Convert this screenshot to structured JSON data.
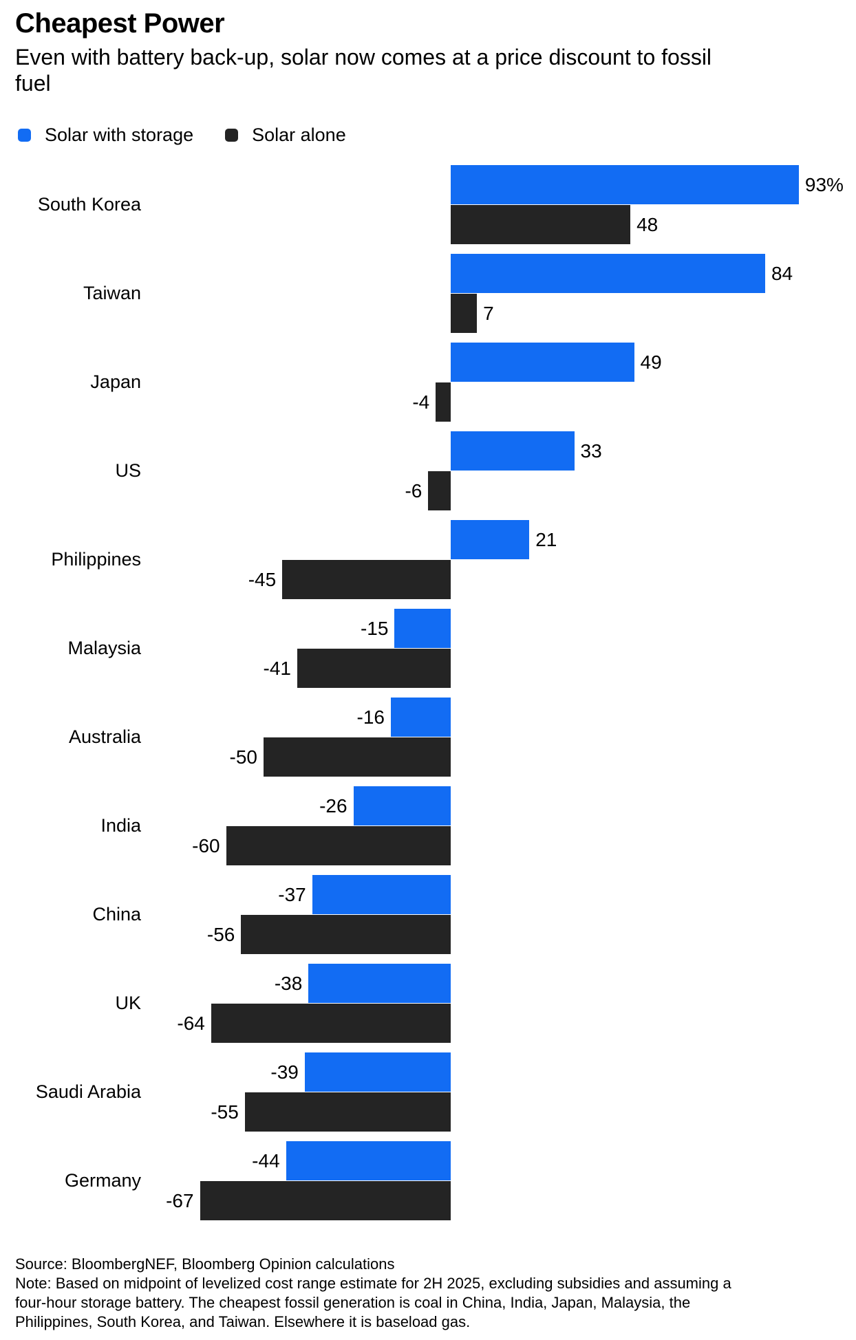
{
  "header": {
    "title": "Cheapest Power",
    "subtitle_line1": "Even with battery back-up, solar now comes at a price discount to fossil",
    "subtitle_line2": "fuel"
  },
  "theme": {
    "background": "#ffffff",
    "text_color": "#000000",
    "accent_blue": "#126cf3",
    "accent_dark": "#242424"
  },
  "chart_data": {
    "type": "bar",
    "orientation": "horizontal",
    "title": "Cheapest Power",
    "subtitle": "Even with battery back-up, solar now comes at a price discount to fossil fuel",
    "unit": "%",
    "xlim": [
      -67,
      93
    ],
    "grid": false,
    "legend_position": "top-left",
    "categories": [
      "South Korea",
      "Taiwan",
      "Japan",
      "US",
      "Philippines",
      "Malaysia",
      "Australia",
      "India",
      "China",
      "UK",
      "Saudi Arabia",
      "Germany"
    ],
    "series": [
      {
        "name": "Solar with storage",
        "color": "#126cf3",
        "values": [
          93,
          84,
          49,
          33,
          21,
          -15,
          -16,
          -26,
          -37,
          -38,
          -39,
          -44
        ],
        "labels": [
          "93%",
          "84",
          "49",
          "33",
          "21",
          "-15",
          "-16",
          "-26",
          "-37",
          "-38",
          "-39",
          "-44"
        ]
      },
      {
        "name": "Solar alone",
        "color": "#242424",
        "values": [
          48,
          7,
          -4,
          -6,
          -45,
          -41,
          -50,
          -60,
          -56,
          -64,
          -55,
          -67
        ],
        "labels": [
          "48",
          "7",
          "-4",
          "-6",
          "-45",
          "-41",
          "-50",
          "-60",
          "-56",
          "-64",
          "-55",
          "-67"
        ]
      }
    ]
  },
  "footer": {
    "source": "Source: BloombergNEF, Bloomberg Opinion calculations",
    "note_lines": [
      "Note: Based on midpoint of levelized cost range estimate for 2H 2025, excluding subsidies and assuming a",
      "four-hour storage battery. The cheapest fossil generation is coal in China, India, Japan, Malaysia, the",
      "Philippines, South Korea, and Taiwan. Elsewhere it is baseload gas."
    ]
  }
}
